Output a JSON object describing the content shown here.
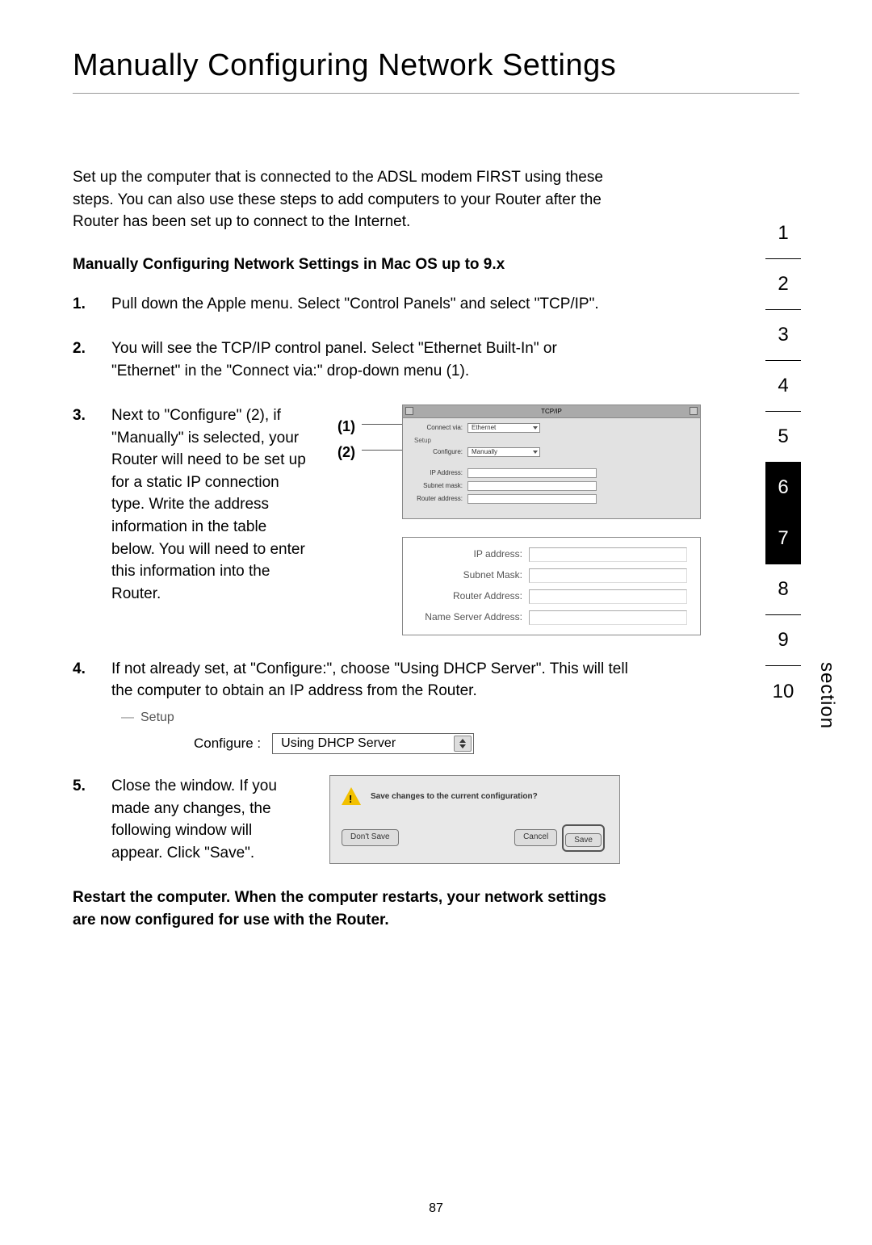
{
  "title": "Manually Configuring Network Settings",
  "intro": "Set up the computer that is connected to the ADSL modem FIRST using these steps. You can also use these steps to add computers to your Router after the Router has been set up to connect to the Internet.",
  "subhead": "Manually Configuring Network Settings in Mac OS up to 9.x",
  "steps": {
    "s1": {
      "num": "1.",
      "text": "Pull down the Apple menu. Select \"Control Panels\" and select \"TCP/IP\"."
    },
    "s2": {
      "num": "2.",
      "text": "You will see the TCP/IP control panel. Select \"Ethernet Built-In\" or \"Ethernet\" in the \"Connect via:\" drop-down menu (1)."
    },
    "s3": {
      "num": "3.",
      "text": "Next to \"Configure\" (2), if \"Manually\" is selected, your Router will need to be set up for a static IP connection type. Write the address information in the table below. You will need to enter this information into the Router."
    },
    "s4": {
      "num": "4.",
      "text": "If not already set, at \"Configure:\", choose \"Using DHCP Server\". This will tell the computer to obtain an IP address from the Router."
    },
    "s5": {
      "num": "5.",
      "text": "Close the window. If you made any changes, the following window will appear. Click \"Save\"."
    }
  },
  "refs": {
    "r1": "(1)",
    "r2": "(2)"
  },
  "tcpip": {
    "title": "TCP/IP",
    "connect_lbl": "Connect via:",
    "connect_val": "Ethernet",
    "setup_lbl": "Setup",
    "configure_lbl": "Configure:",
    "configure_val": "Manually",
    "ip_lbl": "IP Address:",
    "subnet_lbl": "Subnet mask:",
    "router_lbl": "Router address:"
  },
  "addr_table": {
    "ip": "IP address:",
    "subnet": "Subnet Mask:",
    "router": "Router Address:",
    "ns": "Name Server Address:"
  },
  "setup_fig": {
    "setup": "Setup",
    "configure_lbl": "Configure :",
    "configure_val": "Using DHCP Server"
  },
  "save_dialog": {
    "msg": "Save changes to the current configuration?",
    "dont_save": "Don't Save",
    "cancel": "Cancel",
    "save": "Save"
  },
  "restart": "Restart the computer. When the computer restarts, your network settings are now configured for use with the Router.",
  "nav": {
    "items": [
      "1",
      "2",
      "3",
      "4",
      "5",
      "6",
      "7",
      "8",
      "9",
      "10"
    ],
    "active_a": "6",
    "active_b": "7",
    "label": "section"
  },
  "page_number": "87"
}
